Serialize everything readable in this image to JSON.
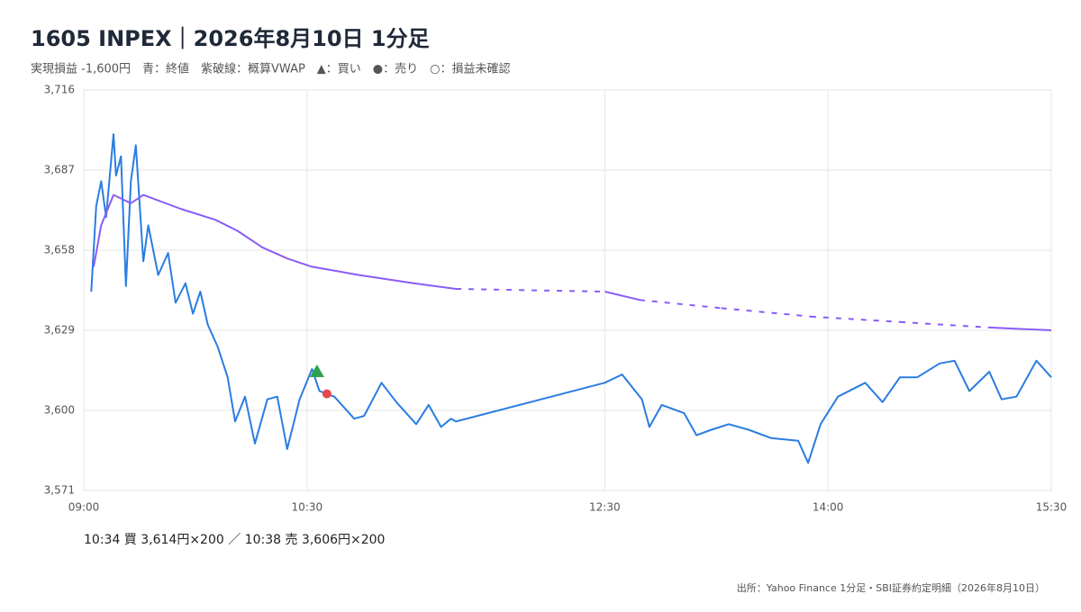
{
  "chart_data": {
    "type": "line",
    "title": "1605 INPEX｜2026年8月10日 1分足",
    "subtitle": "実現損益 -1,600円　青：終値　紫破線：概算VWAP　▲：買い　●：売り　○：損益未確認",
    "note": "10:34 買 3,614円×200 ／ 10:38 売 3,606円×200",
    "source": "出所：Yahoo Finance 1分足・SBI証券約定明細（2026年8月10日）",
    "xlim": [
      "09:00",
      "15:30"
    ],
    "xticks": [
      "09:00",
      "10:30",
      "12:30",
      "14:00",
      "15:30"
    ],
    "ylim": [
      3571,
      3716
    ],
    "yticks": [
      {
        "value": 3571,
        "label": "3,571"
      },
      {
        "value": 3600,
        "label": "3,600"
      },
      {
        "value": 3629,
        "label": "3,629"
      },
      {
        "value": 3658,
        "label": "3,658"
      },
      {
        "value": 3687,
        "label": "3,687"
      },
      {
        "value": 3716,
        "label": "3,716"
      }
    ],
    "grid": true,
    "series": [
      {
        "color": "#2a7de1",
        "x": [
          "09:03",
          "09:05",
          "09:07",
          "09:09",
          "09:12",
          "09:13",
          "09:15",
          "09:17",
          "09:19",
          "09:21",
          "09:24",
          "09:26",
          "09:30",
          "09:34",
          "09:37",
          "09:41",
          "09:44",
          "09:47",
          "09:50",
          "09:54",
          "09:58",
          "10:01",
          "10:05",
          "10:09",
          "10:14",
          "10:18",
          "10:22",
          "10:27",
          "10:32",
          "10:35",
          "10:41",
          "10:49",
          "10:53",
          "11:00",
          "11:06",
          "11:14",
          "11:19",
          "11:24",
          "11:28",
          "11:30",
          "12:30",
          "12:37",
          "12:45",
          "12:48",
          "12:53",
          "13:02",
          "13:07",
          "13:13",
          "13:20",
          "13:28",
          "13:37",
          "13:48",
          "13:52",
          "13:57",
          "14:04",
          "14:15",
          "14:22",
          "14:29",
          "14:36",
          "14:45",
          "14:51",
          "14:57",
          "15:05",
          "15:10",
          "15:16",
          "15:24",
          "15:30"
        ],
        "values": [
          3643,
          3674,
          3683,
          3670,
          3700,
          3685,
          3692,
          3645,
          3683,
          3696,
          3654,
          3667,
          3649,
          3657,
          3639,
          3646,
          3635,
          3643,
          3631,
          3623,
          3612,
          3596,
          3605,
          3588,
          3604,
          3605,
          3586,
          3604,
          3615,
          3607,
          3605,
          3597,
          3598,
          3610,
          3603,
          3595,
          3602,
          3594,
          3597,
          3596,
          3610,
          3613,
          3604,
          3594,
          3602,
          3599,
          3591,
          3593,
          3595,
          3593,
          3590,
          3589,
          3581,
          3595,
          3605,
          3610,
          3603,
          3612,
          3612,
          3617,
          3618,
          3607,
          3614,
          3604,
          3605,
          3618,
          3612
        ]
      },
      {
        "color": "#8b5cf6",
        "x": [
          "09:04",
          "09:07",
          "09:12",
          "09:19",
          "09:24",
          "09:39",
          "09:53",
          "10:02",
          "10:12",
          "10:22",
          "10:32",
          "10:51",
          "11:13",
          "11:30",
          "12:30",
          "12:44",
          "13:17",
          "13:53",
          "14:29",
          "15:05",
          "15:30"
        ],
        "values": [
          3652,
          3667,
          3678,
          3675,
          3678,
          3673,
          3669,
          3665,
          3659,
          3655,
          3652,
          3649,
          3646,
          3644,
          3643,
          3640,
          3637,
          3634,
          3632,
          3630,
          3629
        ]
      }
    ],
    "markers": [
      {
        "x": "10:34",
        "y": 3614,
        "shape": "triangle",
        "color": "#2ca24f"
      },
      {
        "x": "10:38",
        "y": 3606,
        "shape": "circle",
        "color": "#e5484d"
      }
    ]
  }
}
